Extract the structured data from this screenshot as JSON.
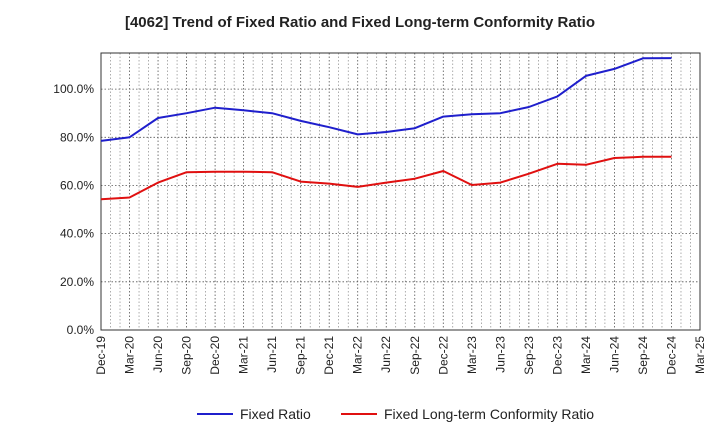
{
  "chart_data": {
    "type": "line",
    "title": "[4062]  Trend of Fixed Ratio and Fixed Long-term Conformity Ratio",
    "xlabel": "",
    "ylabel": "",
    "categories": [
      "Dec-19",
      "Mar-20",
      "Jun-20",
      "Sep-20",
      "Dec-20",
      "Mar-21",
      "Jun-21",
      "Sep-21",
      "Dec-21",
      "Mar-22",
      "Jun-22",
      "Sep-22",
      "Dec-22",
      "Mar-23",
      "Jun-23",
      "Sep-23",
      "Dec-23",
      "Mar-24",
      "Jun-24",
      "Sep-24",
      "Dec-24",
      "Mar-25"
    ],
    "y_ticks": [
      "0.0%",
      "20.0%",
      "40.0%",
      "60.0%",
      "80.0%",
      "100.0%"
    ],
    "ylim": [
      0,
      115
    ],
    "grid": true,
    "legend_position": "bottom",
    "series": [
      {
        "name": "Fixed Ratio",
        "color": "#1f1fcc",
        "values": [
          78.5,
          80.0,
          88.0,
          90.0,
          92.3,
          91.2,
          90.0,
          86.8,
          84.2,
          81.2,
          82.2,
          83.8,
          88.6,
          89.6,
          90.0,
          92.6,
          97.0,
          105.5,
          108.4,
          112.8,
          112.9,
          null
        ]
      },
      {
        "name": "Fixed Long-term Conformity Ratio",
        "color": "#e01010",
        "values": [
          54.3,
          55.0,
          61.2,
          65.5,
          65.7,
          65.7,
          65.5,
          61.6,
          60.8,
          59.4,
          61.2,
          62.8,
          66.0,
          60.2,
          61.2,
          64.9,
          69.0,
          68.6,
          71.4,
          71.9,
          71.9,
          null
        ]
      }
    ]
  }
}
